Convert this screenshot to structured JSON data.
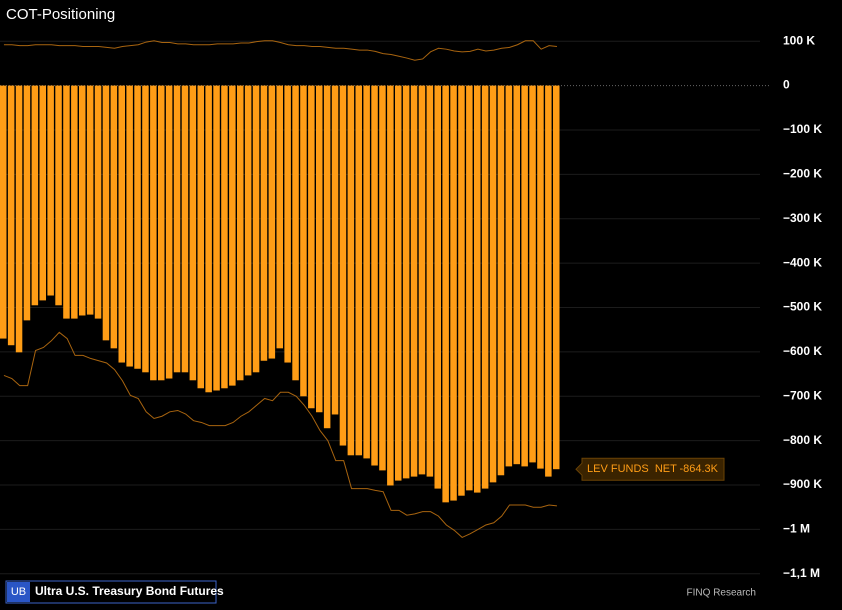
{
  "chart_data": {
    "type": "bar",
    "title": "COT-Positioning",
    "badge": "UB",
    "instrument": "Ultra U.S. Treasury Bond Futures",
    "source": "FINQ Research",
    "ylim": [
      150,
      -1150
    ],
    "yticks": [
      {
        "value": 100,
        "label": "100 K"
      },
      0,
      {
        "value": -100,
        "label": "−100 K"
      },
      {
        "value": -200,
        "label": "−200 K"
      },
      {
        "value": -300,
        "label": "−300 K"
      },
      {
        "value": -400,
        "label": "−400 K"
      },
      {
        "value": -500,
        "label": "−500 K"
      },
      {
        "value": -600,
        "label": "−600 K"
      },
      {
        "value": -700,
        "label": "−700 K"
      },
      {
        "value": -800,
        "label": "−800 K"
      },
      {
        "value": -900,
        "label": "−900 K"
      },
      {
        "value": -1000,
        "label": "−1 M"
      },
      {
        "value": -1100,
        "label": "−1,1 M"
      }
    ],
    "grid": true,
    "series": [
      {
        "name": "LEV FUNDS  NET",
        "type": "bar",
        "color": "#ff9d16",
        "values": [
          -570,
          -585,
          -601,
          -529,
          -495,
          -484,
          -473,
          -495,
          -525,
          -525,
          -518,
          -516,
          -525,
          -574,
          -592,
          -624,
          -633,
          -638,
          -646,
          -664,
          -664,
          -660,
          -646,
          -646,
          -664,
          -682,
          -691,
          -687,
          -682,
          -676,
          -664,
          -653,
          -646,
          -620,
          -615,
          -592,
          -624,
          -664,
          -700,
          -727,
          -736,
          -772,
          -741,
          -811,
          -833,
          -833,
          -840,
          -856,
          -867,
          -901,
          -890,
          -885,
          -881,
          -876,
          -881,
          -908,
          -939,
          -935,
          -924,
          -912,
          -917,
          -908,
          -894,
          -878,
          -858,
          -853,
          -858,
          -849,
          -863,
          -881,
          -864.3
        ],
        "value_labels": [
          null,
          null,
          null,
          null,
          null,
          null,
          null,
          null,
          null,
          null,
          null,
          null,
          null,
          null,
          null,
          null,
          null,
          null,
          null,
          null,
          null,
          null,
          null,
          null,
          null,
          null,
          null,
          null,
          null,
          null,
          null,
          null,
          null,
          null,
          null,
          null,
          null,
          null,
          null,
          null,
          null,
          null,
          null,
          null,
          null,
          null,
          null,
          null,
          null,
          null,
          null,
          null,
          null,
          null,
          null,
          null,
          null,
          null,
          null,
          null,
          null,
          null,
          null,
          null,
          null,
          null,
          null,
          null,
          null,
          null,
          "-864.3K"
        ]
      },
      {
        "type": "line",
        "color": "#a8640f",
        "values": [
          92,
          92,
          90,
          90,
          92,
          92,
          92,
          90,
          90,
          90,
          88,
          88,
          88,
          86,
          84,
          88,
          90,
          92,
          98,
          101,
          97,
          97,
          94,
          94,
          92,
          92,
          92,
          94,
          94,
          94,
          96,
          96,
          99,
          101,
          101,
          97,
          92,
          90,
          90,
          88,
          88,
          86,
          84,
          84,
          82,
          80,
          80,
          77,
          72,
          70,
          66,
          62,
          57,
          60,
          76,
          84,
          82,
          78,
          76,
          77,
          82,
          78,
          80,
          84,
          86,
          92,
          101,
          101,
          82,
          90,
          88
        ]
      },
      {
        "type": "line",
        "color": "#a8640f",
        "values": [
          -653,
          -660,
          -676,
          -676,
          -597,
          -590,
          -575,
          -556,
          -570,
          -608,
          -608,
          -615,
          -620,
          -625,
          -640,
          -665,
          -698,
          -705,
          -735,
          -750,
          -745,
          -735,
          -732,
          -740,
          -755,
          -759,
          -766,
          -766,
          -766,
          -759,
          -745,
          -735,
          -720,
          -705,
          -710,
          -691,
          -691,
          -700,
          -720,
          -745,
          -777,
          -800,
          -845,
          -845,
          -908,
          -908,
          -908,
          -912,
          -915,
          -957,
          -957,
          -968,
          -965,
          -960,
          -960,
          -970,
          -990,
          -1002,
          -1018,
          -1010,
          -1000,
          -990,
          -985,
          -970,
          -945,
          -945,
          -945,
          -950,
          -950,
          -945,
          -947
        ]
      }
    ]
  }
}
